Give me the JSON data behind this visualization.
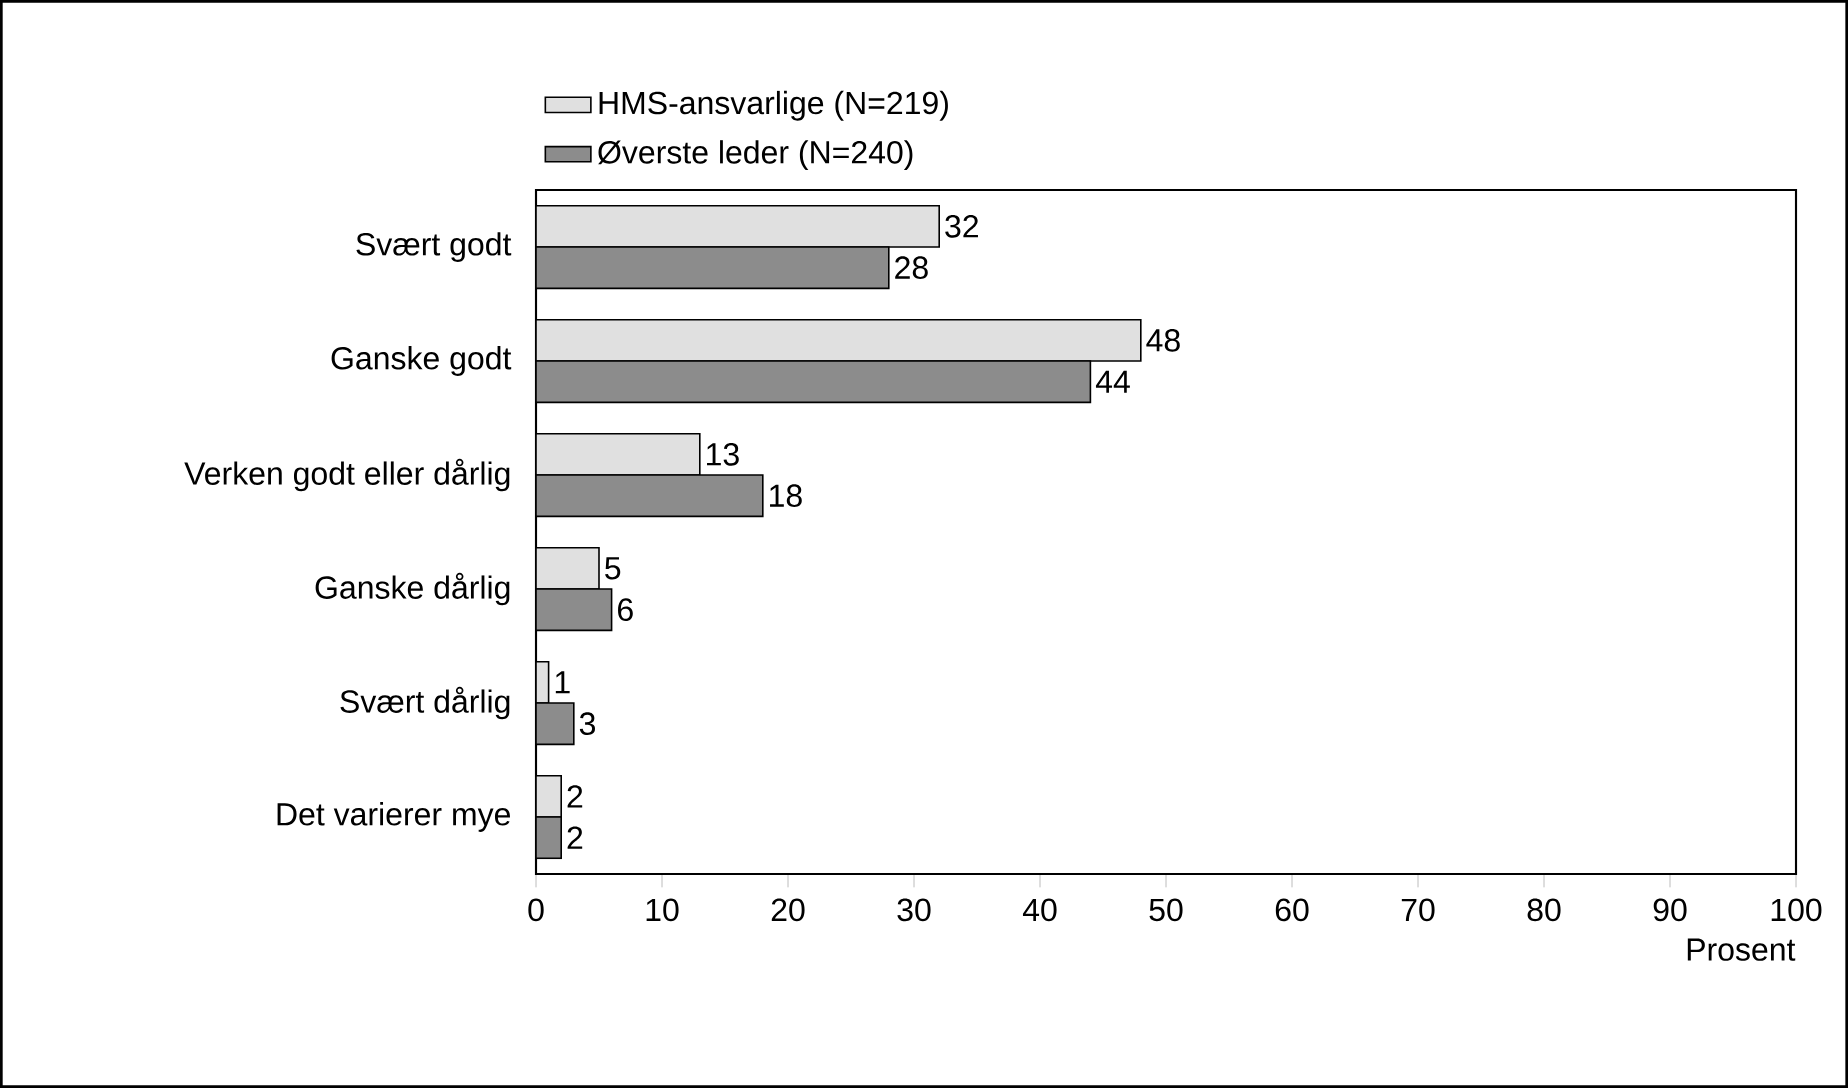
{
  "chart_data": {
    "type": "bar",
    "orientation": "horizontal",
    "xlabel": "Prosent",
    "categories": [
      "Svært godt",
      "Ganske godt",
      "Verken godt eller dårlig",
      "Ganske dårlig",
      "Svært dårlig",
      "Det varierer mye"
    ],
    "series": [
      {
        "name": "HMS-ansvarlige (N=219)",
        "color": "#e0e0e0",
        "values": [
          32,
          48,
          13,
          5,
          1,
          2
        ]
      },
      {
        "name": "Øverste leder (N=240)",
        "color": "#8c8c8c",
        "values": [
          28,
          44,
          18,
          6,
          3,
          2
        ]
      }
    ],
    "xlim": [
      0,
      100
    ],
    "xticks": [
      0,
      10,
      20,
      30,
      40,
      50,
      60,
      70,
      80,
      90,
      100
    ],
    "data_labels": true,
    "legend": "top left",
    "grid": false
  }
}
